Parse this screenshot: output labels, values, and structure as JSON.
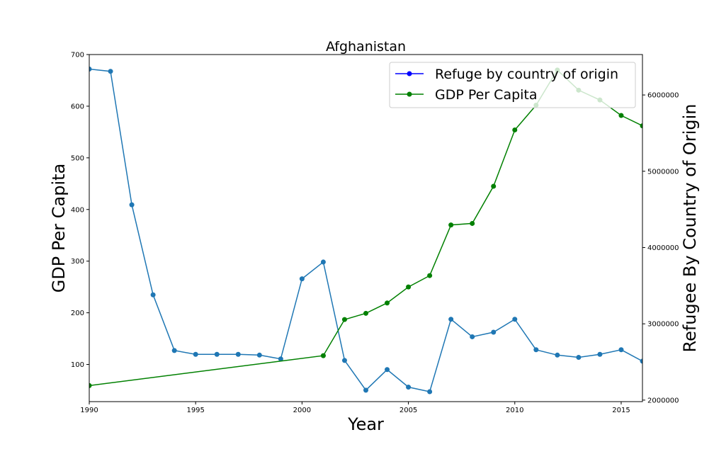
{
  "chart_data": {
    "type": "line",
    "title": "Afghanistan",
    "xlabel": "Year",
    "ylabel_left": "GDP Per Capita",
    "ylabel_right": "Refugee By Country of Origin",
    "xlim": [
      1990,
      2016
    ],
    "ylim_left": [
      28,
      700
    ],
    "ylim_right": [
      1980000,
      6530000
    ],
    "x_ticks": [
      {
        "value": 1990,
        "label": "1990"
      },
      {
        "value": 1995,
        "label": "1995"
      },
      {
        "value": 2000,
        "label": "2000"
      },
      {
        "value": 2005,
        "label": "2005"
      },
      {
        "value": 2010,
        "label": "2010"
      },
      {
        "value": 2015,
        "label": "2015"
      }
    ],
    "y_left_ticks": [
      {
        "value": 100,
        "label": "100"
      },
      {
        "value": 200,
        "label": "200"
      },
      {
        "value": 300,
        "label": "300"
      },
      {
        "value": 400,
        "label": "400"
      },
      {
        "value": 500,
        "label": "500"
      },
      {
        "value": 600,
        "label": "600"
      },
      {
        "value": 700,
        "label": "700"
      }
    ],
    "y_right_ticks": [
      {
        "value": 2000000,
        "label": "2000000"
      },
      {
        "value": 3000000,
        "label": "3000000"
      },
      {
        "value": 4000000,
        "label": "4000000"
      },
      {
        "value": 5000000,
        "label": "5000000"
      },
      {
        "value": 6000000,
        "label": "6000000"
      }
    ],
    "series": [
      {
        "name": "",
        "axis": "right",
        "color": "#1f77b4",
        "x": [
          1990,
          1991,
          1992,
          1993,
          1994,
          1995,
          1996,
          1997,
          1998,
          1999,
          2000,
          2001,
          2002,
          2003,
          2004,
          2005,
          2006,
          2007,
          2008,
          2009,
          2010,
          2011,
          2012,
          2013,
          2014,
          2015,
          2016
        ],
        "y": [
          6340000,
          6310000,
          4560000,
          3380000,
          2650000,
          2600000,
          2600000,
          2600000,
          2590000,
          2540000,
          3590000,
          3810000,
          2520000,
          2130000,
          2400000,
          2170000,
          2110000,
          3060000,
          2830000,
          2890000,
          3060000,
          2660000,
          2590000,
          2560000,
          2600000,
          2660000,
          2510000
        ]
      },
      {
        "name": "GDP Per Capita",
        "axis": "left",
        "color": "#008000",
        "x": [
          1990,
          2001,
          2002,
          2003,
          2004,
          2005,
          2006,
          2007,
          2008,
          2009,
          2010,
          2011,
          2012,
          2013,
          2014,
          2015,
          2016
        ],
        "y": [
          59,
          117,
          187,
          199,
          219,
          250,
          272,
          370,
          373,
          445,
          554,
          602,
          670,
          631,
          612,
          582,
          562
        ]
      }
    ],
    "legend": {
      "placement": "top-right",
      "entries": [
        {
          "label": "Refuge by country of origin",
          "color": "#0000ff"
        },
        {
          "label": "GDP Per Capita",
          "color": "#008000"
        }
      ]
    }
  }
}
